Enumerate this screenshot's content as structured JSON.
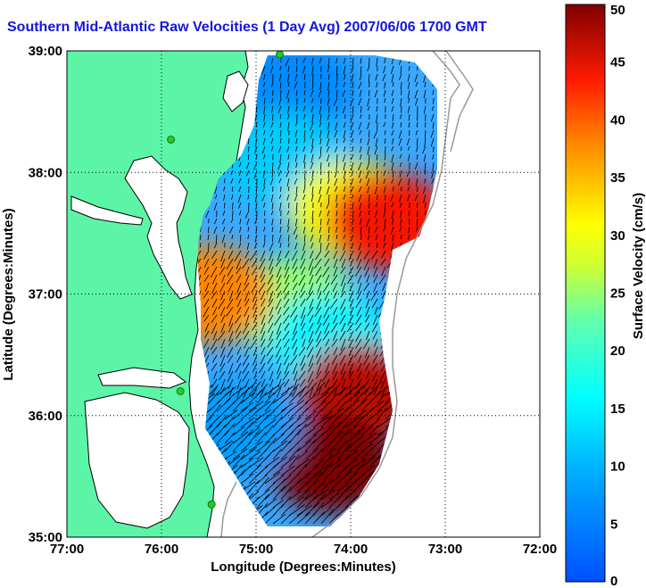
{
  "title": "Southern Mid-Atlantic Raw Velocities (1 Day Avg) 2007/06/06 1700 GMT",
  "x_axis": {
    "label": "Longitude (Degrees:Minutes)",
    "ticks": [
      "77:00",
      "76:00",
      "75:00",
      "74:00",
      "73:00",
      "72:00"
    ]
  },
  "y_axis": {
    "label": "Latitude (Degrees:Minutes)",
    "ticks": [
      "39:00",
      "38:00",
      "37:00",
      "36:00",
      "35:00"
    ]
  },
  "colorbar": {
    "label": "Surface Velocity (cm/s)",
    "ticks": [
      "50",
      "45",
      "40",
      "35",
      "30",
      "25",
      "20",
      "15",
      "10",
      "5",
      "0"
    ],
    "min": 0,
    "max": 50
  },
  "colors": {
    "land": "#5cf5a8",
    "water": "#ffffff",
    "title": "#1515e0",
    "vector": "#000000",
    "shelf_contour": "#999999",
    "station": "#22cc22"
  },
  "grid": "dotted",
  "map_extent": {
    "lon_range": [
      -77,
      -72
    ],
    "lat_range": [
      35,
      39
    ]
  },
  "chart_data": {
    "type": "heatmap",
    "title": "Southern Mid-Atlantic Raw Velocities (1 Day Avg) 2007/06/06 1700 GMT",
    "xlabel": "Longitude (Degrees:Minutes)",
    "ylabel": "Latitude (Degrees:Minutes)",
    "xlim": [
      -77,
      -72
    ],
    "ylim": [
      35,
      39
    ],
    "colorbar_range": [
      0,
      50
    ],
    "colorbar_label": "Surface Velocity (cm/s)",
    "regions": [
      {
        "lon": -74.6,
        "lat": 38.7,
        "speed": 6
      },
      {
        "lon": -74.7,
        "lat": 38.1,
        "speed": 12
      },
      {
        "lon": -74.0,
        "lat": 37.7,
        "speed": 30
      },
      {
        "lon": -73.6,
        "lat": 37.6,
        "speed": 44
      },
      {
        "lon": -74.6,
        "lat": 36.9,
        "speed": 25
      },
      {
        "lon": -75.5,
        "lat": 37.0,
        "speed": 38
      },
      {
        "lon": -74.2,
        "lat": 36.6,
        "speed": 15
      },
      {
        "lon": -73.9,
        "lat": 36.2,
        "speed": 47
      },
      {
        "lon": -74.2,
        "lat": 35.6,
        "speed": 50
      },
      {
        "lon": -75.2,
        "lat": 35.9,
        "speed": 8
      }
    ]
  }
}
